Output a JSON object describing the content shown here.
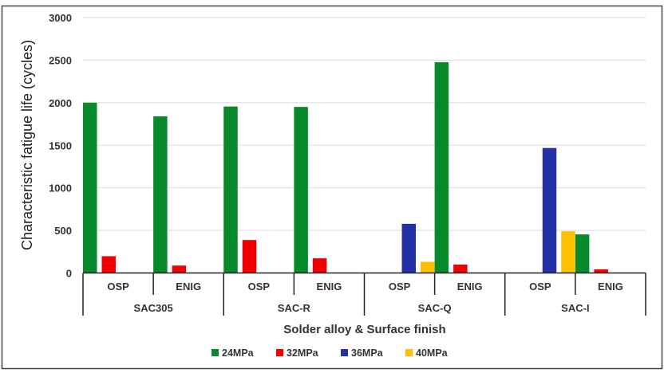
{
  "chart_data": {
    "type": "bar",
    "title": "",
    "xlabel": "Solder alloy & Surface finish",
    "ylabel": "Characteristic fatigue life (cycles)",
    "ylim": [
      0,
      3000
    ],
    "yticks": [
      "0",
      "500",
      "1000",
      "1500",
      "2000",
      "2500",
      "3000"
    ],
    "grid": true,
    "legend_position": "bottom",
    "groups": [
      "SAC305",
      "SAC-R",
      "SAC-Q",
      "SAC-I"
    ],
    "categories": [
      "OSP",
      "ENIG",
      "OSP",
      "ENIG",
      "OSP",
      "ENIG",
      "OSP",
      "ENIG"
    ],
    "series": [
      {
        "name": "24MPa",
        "color": "#078a2c",
        "values": [
          2000,
          1840,
          1955,
          1950,
          null,
          2475,
          null,
          453
        ]
      },
      {
        "name": "32MPa",
        "color": "#f00000",
        "values": [
          197,
          87,
          387,
          172,
          null,
          99,
          null,
          43
        ]
      },
      {
        "name": "36MPa",
        "color": "#2430a6",
        "values": [
          null,
          null,
          null,
          null,
          577,
          null,
          1468,
          null
        ]
      },
      {
        "name": "40MPa",
        "color": "#ffc000",
        "values": [
          null,
          null,
          null,
          null,
          131,
          null,
          490,
          null
        ]
      }
    ]
  }
}
